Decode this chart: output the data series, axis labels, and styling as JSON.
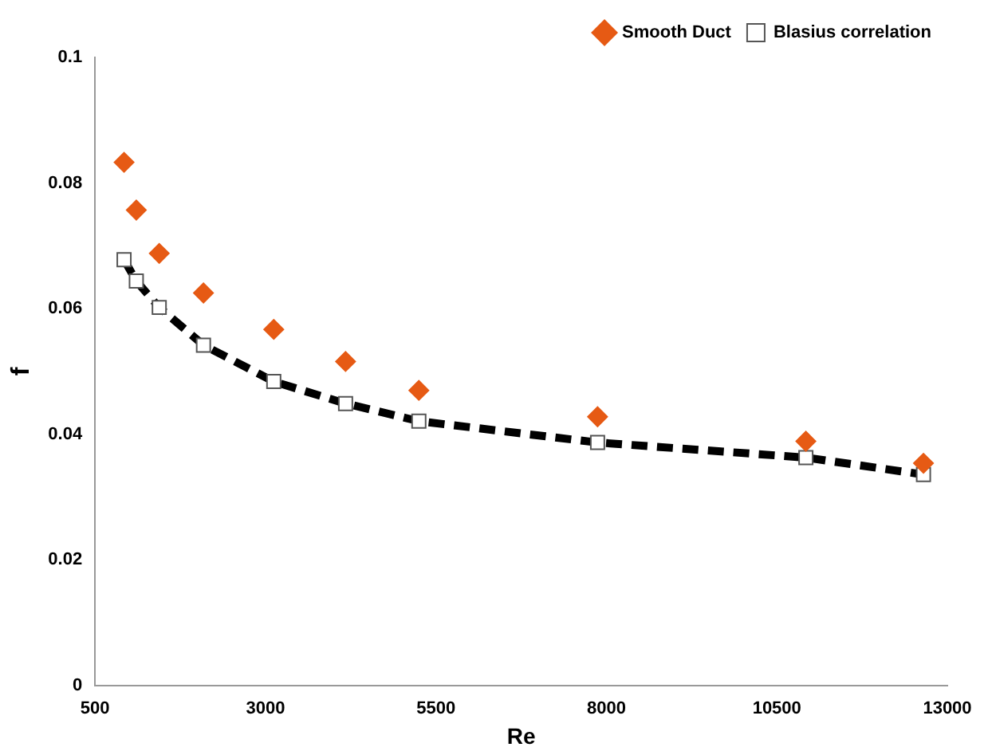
{
  "chart_data": {
    "type": "scatter",
    "xlabel": "Re",
    "ylabel": "f",
    "xlim": [
      500,
      13000
    ],
    "xticks": [
      500,
      3000,
      5500,
      8000,
      10500,
      13000
    ],
    "ylim": [
      0,
      0.1
    ],
    "yticks": [
      0,
      0.02,
      0.04,
      0.06,
      0.08,
      0.1
    ],
    "grid": false,
    "legend": "top right",
    "x": [
      925,
      1105,
      1441,
      2090,
      3121,
      4174,
      5249,
      7870,
      10925,
      12650
    ],
    "series": [
      {
        "name": "Smooth Duct",
        "marker": "diamond",
        "color": "#e65a14",
        "values": [
          0.0833,
          0.0757,
          0.0688,
          0.0625,
          0.0567,
          0.0516,
          0.047,
          0.0428,
          0.0389,
          0.0354
        ]
      },
      {
        "name": "Blasius correlation",
        "type": "line",
        "marker": "square",
        "line_style": "dashed",
        "color": "#000000",
        "values": [
          0.0678,
          0.0644,
          0.0602,
          0.0542,
          0.0484,
          0.0449,
          0.0421,
          0.0387,
          0.0363,
          0.0336
        ]
      }
    ]
  }
}
